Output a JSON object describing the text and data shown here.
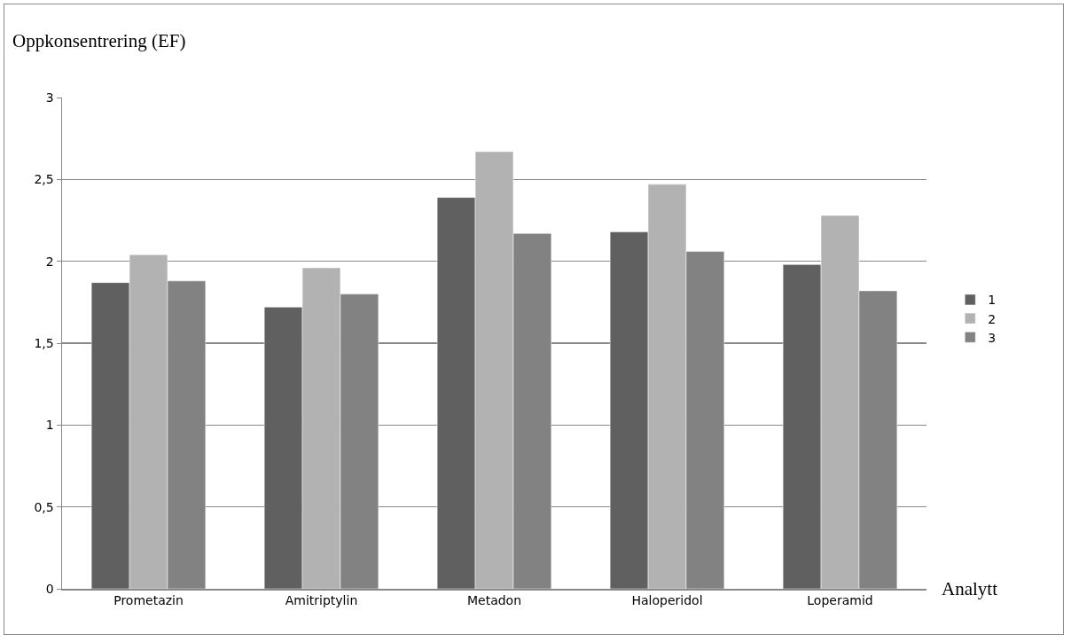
{
  "chart_data": {
    "type": "bar",
    "ylabel": "Oppkonsentrering (EF)",
    "xlabel": "Analytt",
    "categories": [
      "Prometazin",
      "Amitriptylin",
      "Metadon",
      "Haloperidol",
      "Loperamid"
    ],
    "series": [
      {
        "name": "1",
        "color": "#606060",
        "values": [
          1.87,
          1.72,
          2.39,
          2.18,
          1.98
        ]
      },
      {
        "name": "2",
        "color": "#b2b2b2",
        "values": [
          2.04,
          1.96,
          2.67,
          2.47,
          2.28
        ]
      },
      {
        "name": "3",
        "color": "#828282",
        "values": [
          1.88,
          1.8,
          2.17,
          2.06,
          1.82
        ]
      }
    ],
    "ylim": [
      0,
      3
    ],
    "yticks": [
      0,
      {
        "value": 0.5,
        "label": "0,5"
      },
      1,
      {
        "value": 1.5,
        "label": "1,5"
      },
      2,
      {
        "value": 2.5,
        "label": "2,5"
      },
      3
    ],
    "grid": "y",
    "legend": "right"
  }
}
